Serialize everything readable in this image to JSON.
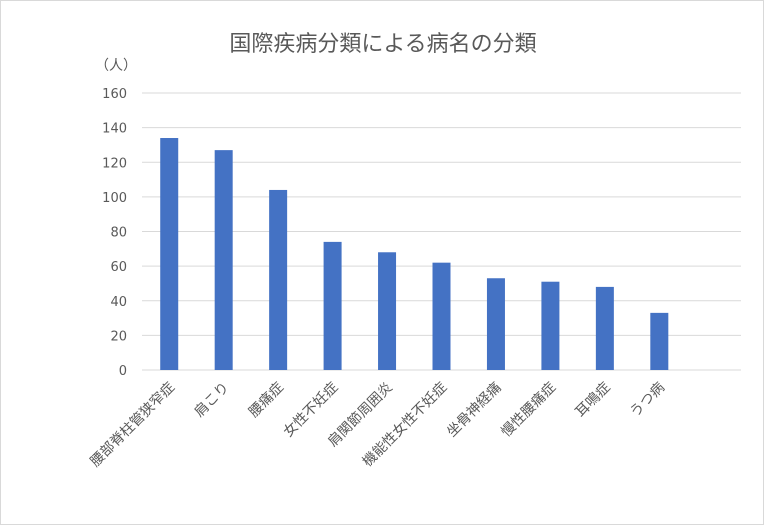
{
  "chart_data": {
    "type": "bar",
    "title": "国際疾病分類による病名の分類",
    "ylabel": "（人）",
    "xlabel": "",
    "categories": [
      "腰部脊柱管狭窄症",
      "肩こり",
      "腰痛症",
      "女性不妊症",
      "肩関節周囲炎",
      "機能性女性不妊症",
      "坐骨神経痛",
      "慢性腰痛症",
      "耳鳴症",
      "うつ病"
    ],
    "values": [
      134,
      127,
      104,
      74,
      68,
      62,
      53,
      51,
      48,
      33
    ],
    "ylim": [
      0,
      160
    ],
    "yticks": [
      "0",
      "20",
      "40",
      "60",
      "80",
      "100",
      "120",
      "140",
      "160"
    ],
    "grid": true,
    "legend": "none",
    "bar_color": "#4472c4",
    "grid_color": "#d9d9d9"
  }
}
